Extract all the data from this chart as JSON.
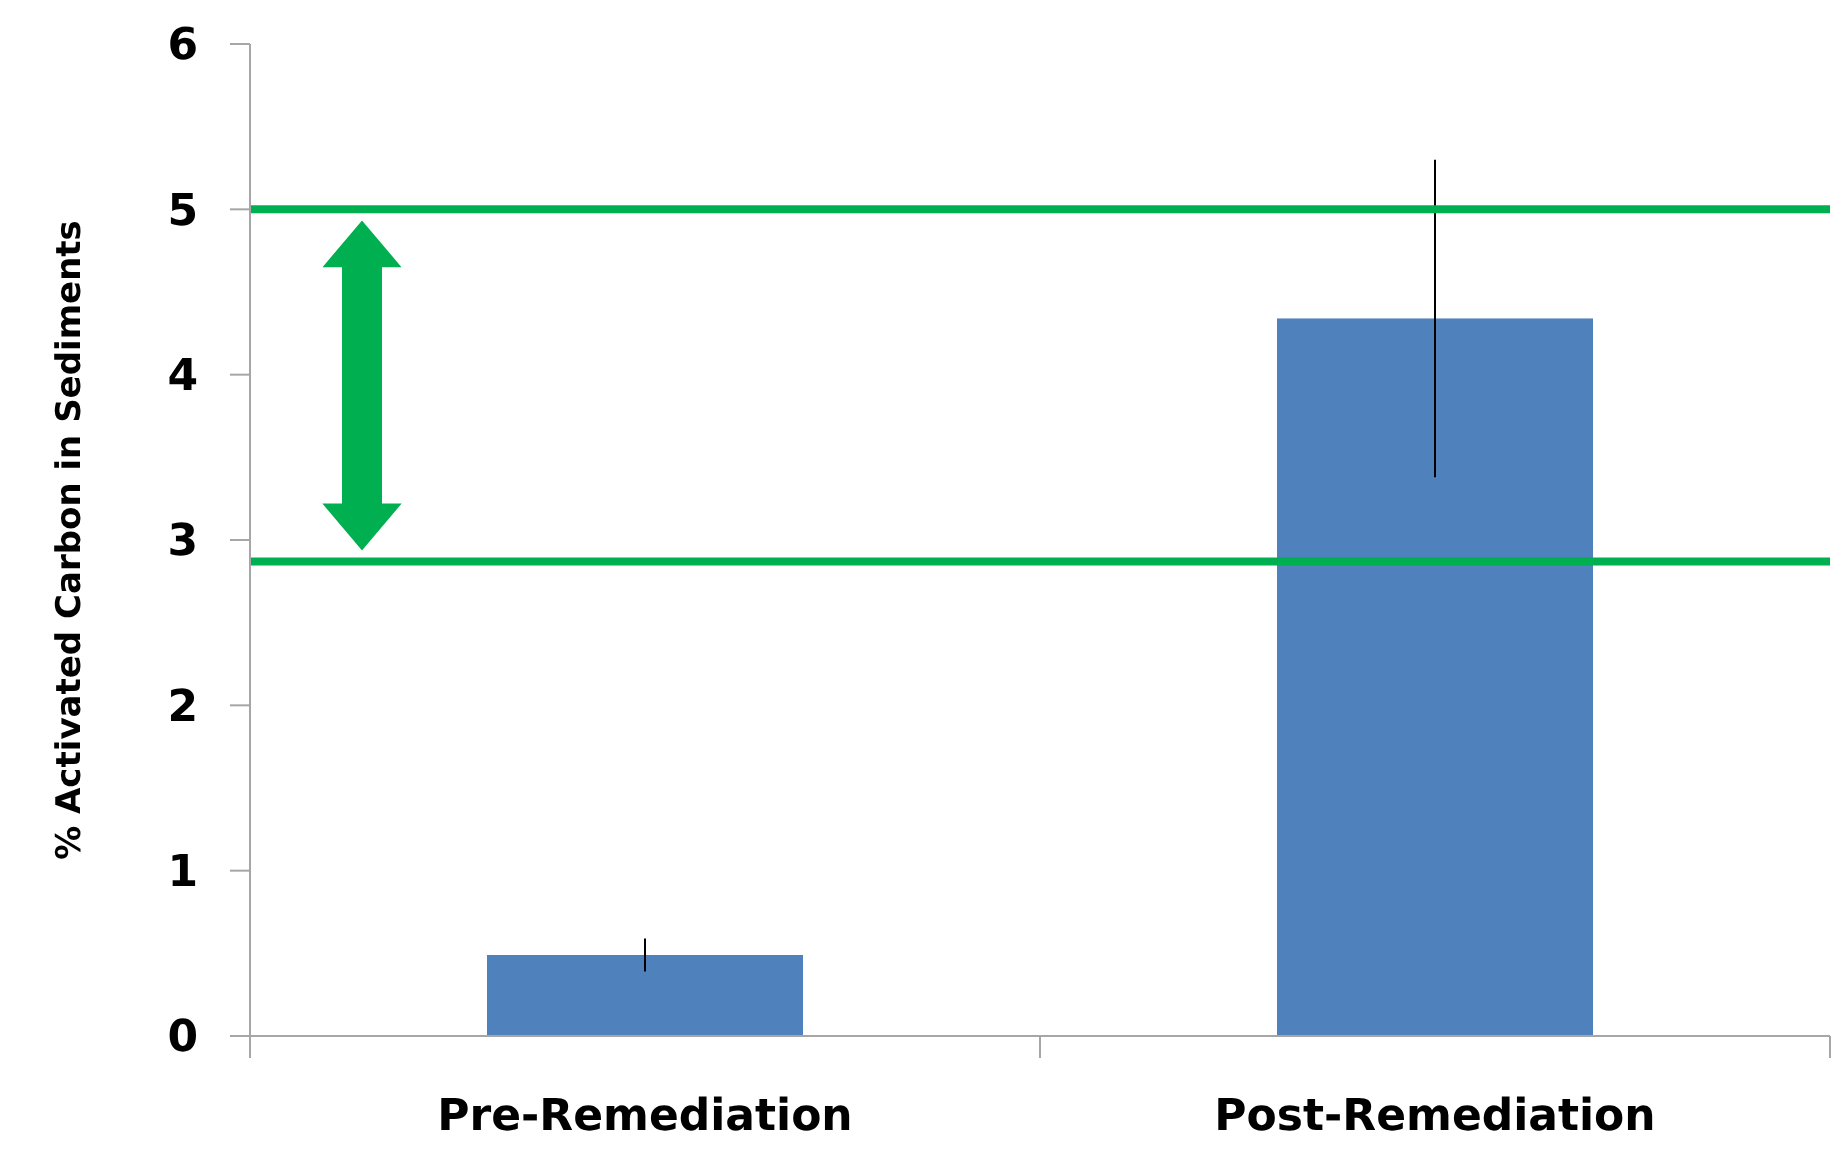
{
  "chart_data": {
    "type": "bar",
    "ylabel": "% Activated Carbon in Sediments",
    "categories": [
      "Pre-Remediation",
      "Post-Remediation"
    ],
    "values": [
      0.49,
      4.34
    ],
    "errors": [
      0.1,
      0.96
    ],
    "color": "#4f81bd",
    "ylim": [
      0,
      6
    ],
    "yticks": [
      0,
      1,
      2,
      3,
      4,
      5,
      6
    ],
    "grid": false,
    "ref_lines": [
      {
        "axis": "y",
        "value": 5.0,
        "color": "#00b050"
      },
      {
        "axis": "y",
        "value": 2.87,
        "color": "#00b050"
      }
    ]
  }
}
